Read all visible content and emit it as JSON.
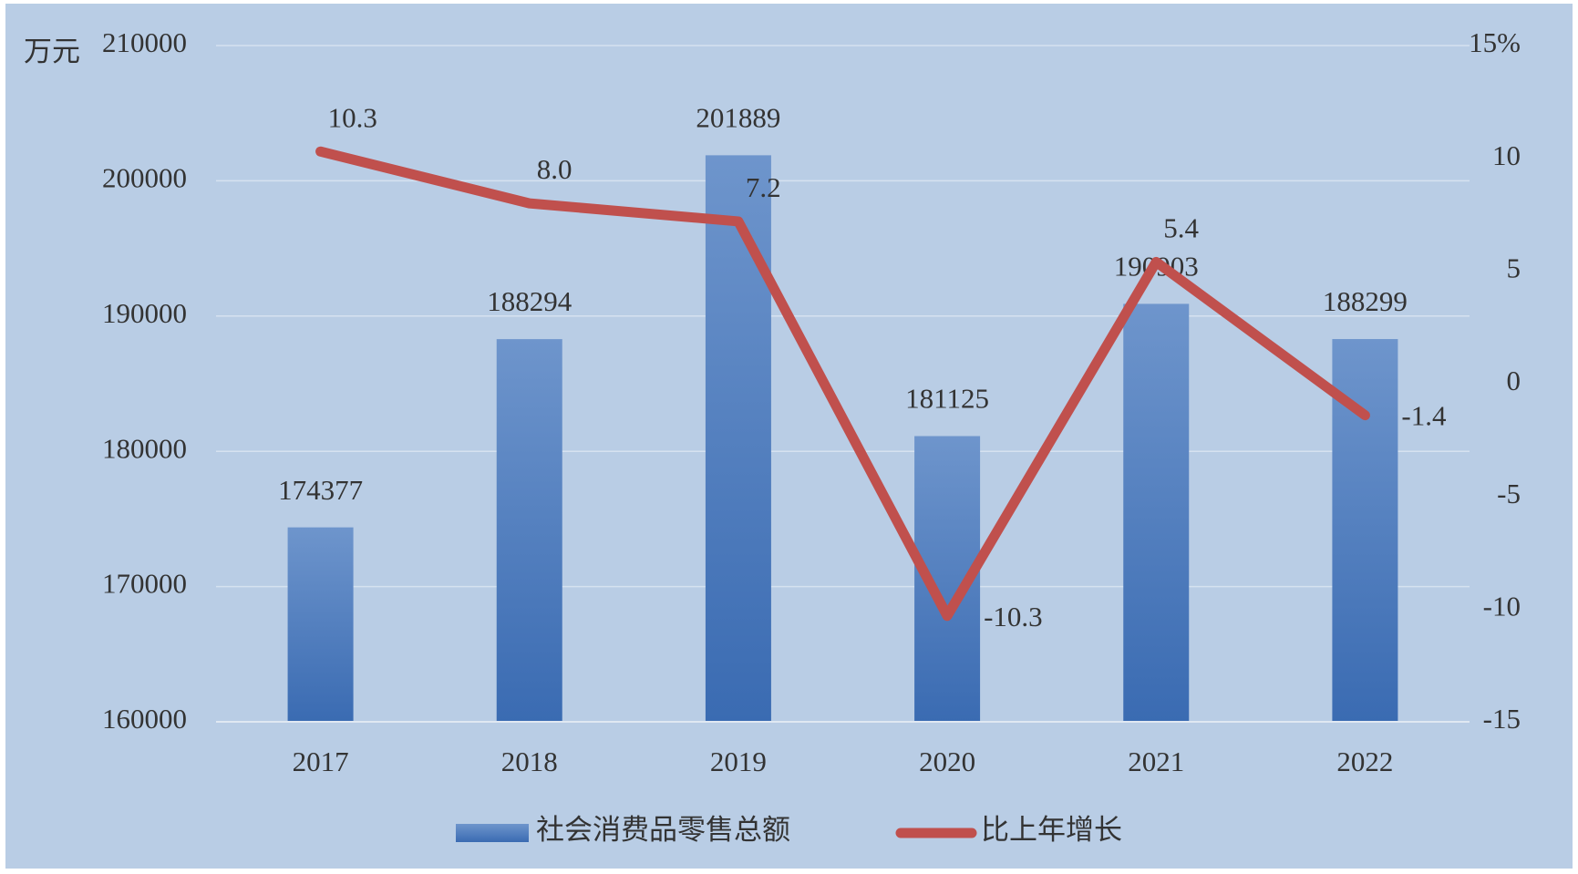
{
  "chart_data": {
    "type": "bar-line",
    "y_unit": "万元",
    "categories": [
      "2017",
      "2018",
      "2019",
      "2020",
      "2021",
      "2022"
    ],
    "series": [
      {
        "name": "社会消费品零售总额",
        "type": "bar",
        "color": "#4a7cc0",
        "values": [
          174377,
          188294,
          201889,
          181125,
          190903,
          188299
        ]
      },
      {
        "name": "比上年增长",
        "type": "line",
        "axis": "y2",
        "color": "#c0504d",
        "values": [
          10.3,
          8.0,
          7.2,
          -10.3,
          5.4,
          -1.4
        ],
        "value_labels": [
          "10.3",
          "8.0",
          "7.2",
          "-10.3",
          "5.4",
          "-1.4"
        ]
      }
    ],
    "ylim": [
      160000,
      210000
    ],
    "yticks": [
      160000,
      170000,
      180000,
      190000,
      200000,
      210000
    ],
    "y2lim": [
      -15,
      15
    ],
    "y2ticks": [
      -15,
      -10,
      -5,
      0,
      5,
      10,
      {
        "value": 15,
        "label": "15%"
      }
    ],
    "grid": true,
    "legend": "bottom"
  }
}
